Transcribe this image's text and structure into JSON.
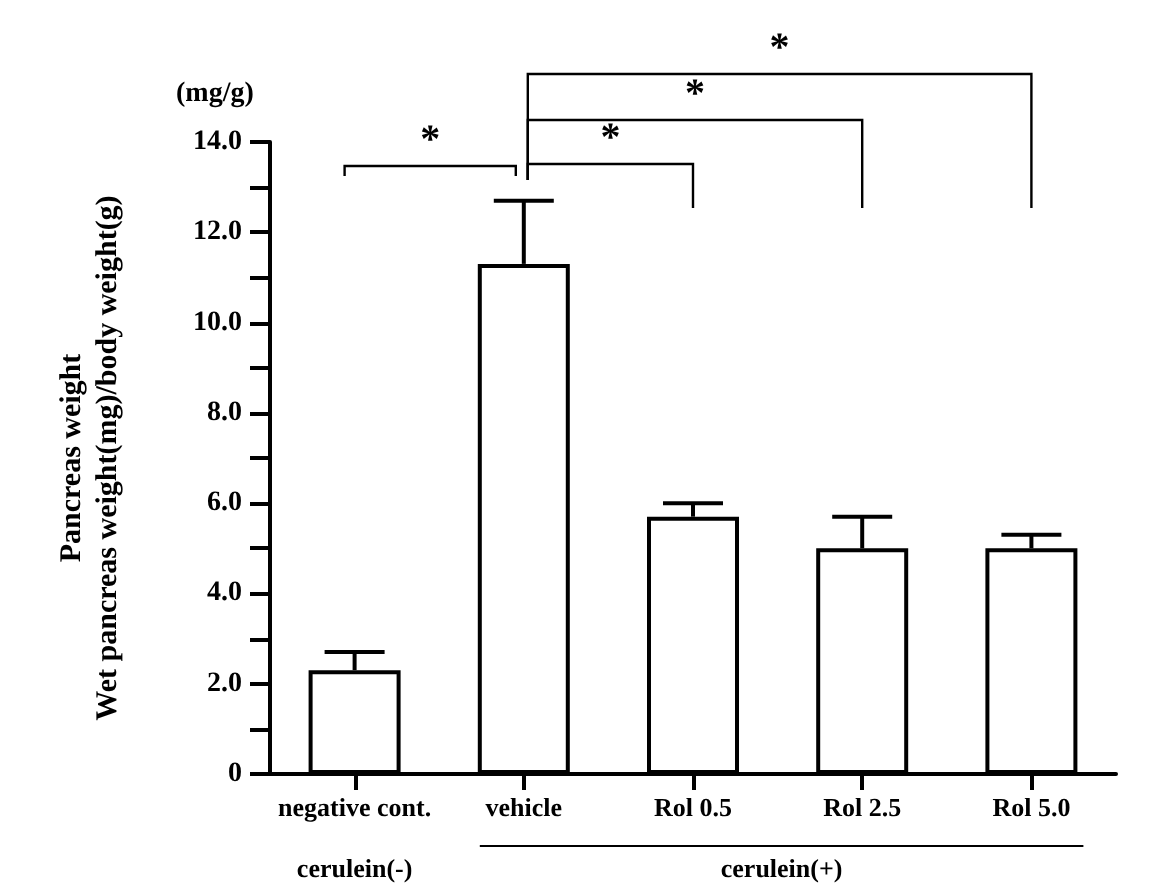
{
  "chart_data": {
    "type": "bar",
    "ylabel": "Pancreas weight\nWet pancreas weight(mg)/body weight(g)",
    "categories": [
      "negative cont.",
      "vehicle",
      "Rol 0.5",
      "Rol 2.5",
      "Rol 5.0"
    ],
    "values": [
      2.3,
      11.3,
      5.7,
      5.0,
      5.0
    ],
    "errors": [
      [
        2.3,
        2.7
      ],
      [
        11.3,
        12.7
      ],
      [
        5.7,
        6.0
      ],
      [
        5.0,
        5.7
      ],
      [
        5.0,
        5.3
      ]
    ],
    "color": "#ffffff",
    "ylim": [
      0,
      14
    ],
    "yticks": [
      0,
      {
        "value": 1,
        "label": null
      },
      {
        "value": 2,
        "label": "2.0"
      },
      {
        "value": 3,
        "label": null
      },
      {
        "value": 4,
        "label": "4.0"
      },
      {
        "value": 5,
        "label": null
      },
      {
        "value": 6,
        "label": "6.0"
      },
      {
        "value": 7,
        "label": null
      },
      {
        "value": 8,
        "label": "8.0"
      },
      {
        "value": 9,
        "label": null
      },
      {
        "value": 10,
        "label": "10.0"
      },
      {
        "value": 11,
        "label": null
      },
      {
        "value": 12,
        "label": "12.0"
      },
      {
        "value": 13,
        "label": null
      },
      {
        "value": 14,
        "label": "14.0"
      }
    ],
    "annotations": [
      "(mg/g)",
      "*",
      "*",
      "*",
      "*",
      "cerulein(-)",
      "cerulein(+)"
    ],
    "grid": false
  }
}
